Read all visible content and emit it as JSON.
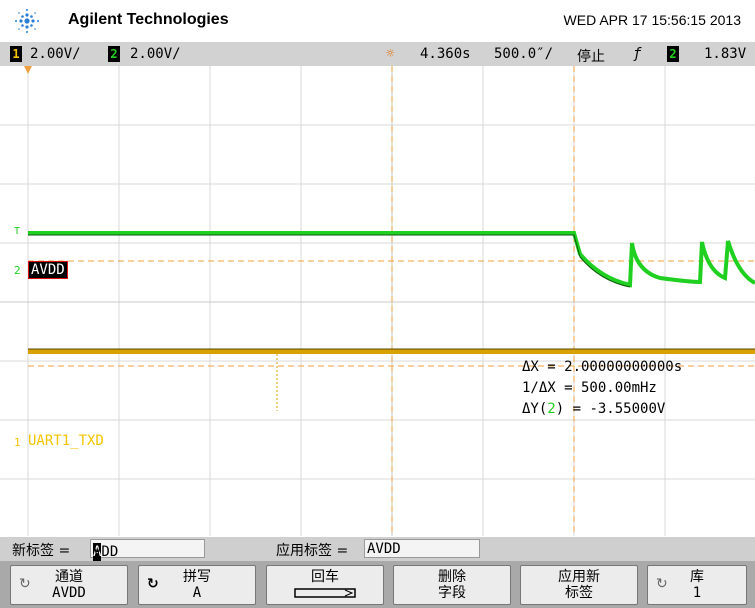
{
  "header": {
    "brand": "Agilent Technologies",
    "datetime": "WED APR 17 15:56:15 2013"
  },
  "status": {
    "ch1_num": "1",
    "ch1_scale": "2.00V/",
    "ch2_num": "2",
    "ch2_scale": "2.00V/",
    "time_pos": "4.360s",
    "time_div": "500.0″/",
    "run_state": "停止",
    "trig_ch": "2",
    "trig_level": "1.83V"
  },
  "screen": {
    "ch2_label": "AVDD",
    "ch1_label": "UART1_TXD",
    "ch1_marker": "1",
    "ch2_marker": "2",
    "trig_marker": "T",
    "measurements": {
      "dx": "ΔX = 2.00000000000s",
      "inv_dx": "1/ΔX = 500.00mHz",
      "dy_prefix": "ΔY(",
      "dy_ch": "2",
      "dy_suffix": ") = -3.55000V"
    }
  },
  "edit": {
    "new_label_text": "新标签 =",
    "new_label_cursor": "A",
    "new_label_rest": "VDD",
    "apply_label_text": "应用标签 =",
    "apply_label_value": "AVDD"
  },
  "softkeys": [
    {
      "line1": "通道",
      "line2": "AVDD"
    },
    {
      "line1": "拼写",
      "line2": "A"
    },
    {
      "line1": "回车",
      "line2": ""
    },
    {
      "line1": "删除",
      "line2": "字段"
    },
    {
      "line1": "应用新",
      "line2": "标签"
    },
    {
      "line1": "库",
      "line2": "1"
    }
  ],
  "colors": {
    "ch1": "#f5c400",
    "ch2": "#20d020",
    "cursor": "#f0a040"
  }
}
